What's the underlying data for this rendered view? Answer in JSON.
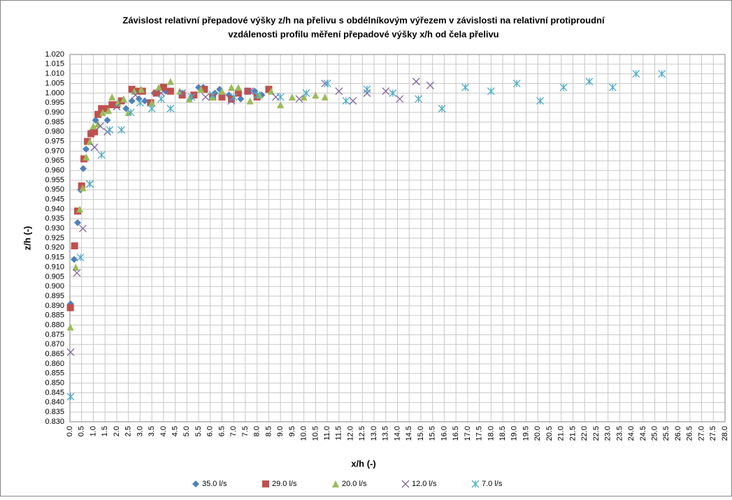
{
  "chart_data": {
    "type": "scatter",
    "title": [
      "Závislost relativní přepadové výšky z/h na přelivu s obdélníkovým výřezem v závislosti na relativní protiproudní",
      "vzdálenosti profilu měření přepadové výšky x/h od čela přelivu"
    ],
    "x_label": "x/h (-)",
    "y_label": "z/h (-)",
    "xlim": [
      0,
      28
    ],
    "ylim": [
      0.83,
      1.02
    ],
    "grid": true,
    "legend": "bottom",
    "xticks": [
      {
        "value": 0,
        "label": "0.0"
      },
      0.5,
      {
        "value": 1,
        "label": "1.0"
      },
      1.5,
      {
        "value": 2,
        "label": "2.0"
      },
      2.5,
      {
        "value": 3,
        "label": "3.0"
      },
      3.5,
      {
        "value": 4,
        "label": "4.0"
      },
      4.5,
      {
        "value": 5,
        "label": "5.0"
      },
      5.5,
      {
        "value": 6,
        "label": "6.0"
      },
      6.5,
      {
        "value": 7,
        "label": "7.0"
      },
      7.5,
      {
        "value": 8,
        "label": "8.0"
      },
      8.5,
      {
        "value": 9,
        "label": "9.0"
      },
      9.5,
      {
        "value": 10,
        "label": "10.0"
      },
      10.5,
      {
        "value": 11,
        "label": "11.0"
      },
      11.5,
      {
        "value": 12,
        "label": "12.0"
      },
      12.5,
      {
        "value": 13,
        "label": "13.0"
      },
      13.5,
      {
        "value": 14,
        "label": "14.0"
      },
      14.5,
      {
        "value": 15,
        "label": "15.0"
      },
      15.5,
      {
        "value": 16,
        "label": "16.0"
      },
      16.5,
      {
        "value": 17,
        "label": "17.0"
      },
      17.5,
      {
        "value": 18,
        "label": "18.0"
      },
      18.5,
      {
        "value": 19,
        "label": "19.0"
      },
      19.5,
      {
        "value": 20,
        "label": "20.0"
      },
      20.5,
      {
        "value": 21,
        "label": "21.0"
      },
      21.5,
      {
        "value": 22,
        "label": "22.0"
      },
      22.5,
      {
        "value": 23,
        "label": "23.0"
      },
      23.5,
      {
        "value": 24,
        "label": "24.0"
      },
      24.5,
      {
        "value": 25,
        "label": "25.0"
      },
      25.5,
      {
        "value": 26,
        "label": "26.0"
      },
      26.5,
      {
        "value": 27,
        "label": "27.0"
      },
      27.5,
      {
        "value": 28,
        "label": "28.0"
      }
    ],
    "yticks": [
      {
        "value": 0.83,
        "label": "0.830"
      },
      0.835,
      {
        "value": 0.84,
        "label": "0.840"
      },
      0.845,
      {
        "value": 0.85,
        "label": "0.850"
      },
      0.855,
      {
        "value": 0.86,
        "label": "0.860"
      },
      0.865,
      {
        "value": 0.87,
        "label": "0.870"
      },
      0.875,
      {
        "value": 0.88,
        "label": "0.880"
      },
      0.885,
      {
        "value": 0.89,
        "label": "0.890"
      },
      0.895,
      {
        "value": 0.9,
        "label": "0.900"
      },
      0.905,
      {
        "value": 0.91,
        "label": "0.910"
      },
      0.915,
      {
        "value": 0.92,
        "label": "0.920"
      },
      0.925,
      {
        "value": 0.93,
        "label": "0.930"
      },
      0.935,
      {
        "value": 0.94,
        "label": "0.940"
      },
      0.945,
      {
        "value": 0.95,
        "label": "0.950"
      },
      0.955,
      {
        "value": 0.96,
        "label": "0.960"
      },
      0.965,
      {
        "value": 0.97,
        "label": "0.970"
      },
      0.975,
      {
        "value": 0.98,
        "label": "0.980"
      },
      0.985,
      {
        "value": 0.99,
        "label": "0.990"
      },
      0.995,
      {
        "value": 1,
        "label": "1.000"
      },
      1.005,
      {
        "value": 1.01,
        "label": "1.010"
      },
      1.015,
      {
        "value": 1.02,
        "label": "1.020"
      }
    ],
    "series": [
      {
        "name": "35.0 l/s",
        "color": "#4f81bd",
        "marker": "diamond",
        "x": [
          0.03,
          0.18,
          0.33,
          0.45,
          0.57,
          0.69,
          0.9,
          1.1,
          1.35,
          1.6,
          2.4,
          2.65,
          2.95,
          3.2,
          3.6,
          4.1,
          4.8,
          5.2,
          5.5,
          5.7,
          6.2,
          6.4,
          6.8,
          7.3,
          7.6,
          7.9,
          8.2,
          8.5
        ],
        "values": [
          0.891,
          0.914,
          0.933,
          0.95,
          0.961,
          0.971,
          0.98,
          0.986,
          0.991,
          0.986,
          0.992,
          0.996,
          0.997,
          0.996,
          1.0,
          1.001,
          1.0,
          0.998,
          1.003,
          1.003,
          1.0,
          1.002,
          0.999,
          0.997,
          1.001,
          1.001,
          0.999,
          1.002
        ]
      },
      {
        "name": "29.0 l/s",
        "color": "#c0504d",
        "marker": "square",
        "x": [
          0.02,
          0.2,
          0.33,
          0.5,
          0.6,
          0.75,
          0.9,
          1.05,
          1.2,
          1.35,
          1.55,
          1.8,
          2.0,
          2.2,
          2.65,
          2.85,
          3.1,
          3.45,
          3.7,
          4.0,
          4.3,
          4.8,
          5.3,
          5.75,
          6.1,
          6.5,
          6.9,
          7.2,
          7.6,
          8.0,
          8.5
        ],
        "values": [
          0.889,
          0.921,
          0.939,
          0.952,
          0.966,
          0.975,
          0.979,
          0.98,
          0.989,
          0.992,
          0.992,
          0.994,
          0.994,
          0.996,
          1.002,
          1.001,
          1.001,
          0.995,
          1.0,
          1.003,
          1.001,
          0.999,
          0.999,
          1.002,
          0.998,
          0.998,
          0.997,
          1.0,
          1.001,
          0.998,
          1.002
        ]
      },
      {
        "name": "20.0 l/s",
        "color": "#9bbb59",
        "marker": "triangle",
        "x": [
          0.02,
          0.25,
          0.42,
          0.55,
          0.7,
          0.85,
          1.0,
          1.2,
          1.4,
          1.65,
          1.8,
          2.05,
          2.3,
          2.5,
          2.75,
          3.05,
          3.5,
          3.8,
          4.3,
          4.7,
          5.1,
          5.6,
          6.1,
          6.5,
          6.9,
          7.2,
          7.7,
          8.1,
          8.6,
          9.0,
          9.5,
          10.0,
          10.5,
          10.9
        ],
        "values": [
          0.879,
          0.91,
          0.94,
          0.951,
          0.967,
          0.975,
          0.983,
          0.984,
          0.99,
          0.991,
          0.998,
          0.995,
          0.997,
          0.99,
          1.001,
          1.002,
          0.995,
          1.003,
          1.006,
          1.001,
          0.997,
          1.002,
          0.998,
          1.001,
          1.003,
          1.003,
          0.996,
          0.999,
          1.001,
          0.994,
          0.998,
          0.998,
          0.999,
          0.998
        ]
      },
      {
        "name": "12.0 l/s",
        "color": "#8064a2",
        "marker": "x",
        "x": [
          0.03,
          0.3,
          0.55,
          0.85,
          1.05,
          1.3,
          1.6,
          2.0,
          2.8,
          3.9,
          4.8,
          5.8,
          6.9,
          7.7,
          8.8,
          9.8,
          10.9,
          11.5,
          12.1,
          12.7,
          13.5,
          14.1,
          14.8,
          15.4
        ],
        "values": [
          0.866,
          0.907,
          0.93,
          0.953,
          0.972,
          0.983,
          0.98,
          0.993,
          0.999,
          1.0,
          1.0,
          0.998,
          0.996,
          1.001,
          0.998,
          0.997,
          1.005,
          1.001,
          0.996,
          1.0,
          1.001,
          0.997,
          1.006,
          1.004
        ]
      },
      {
        "name": "7.0 l/s",
        "color": "#4bacc6",
        "marker": "star",
        "x": [
          0.03,
          0.45,
          0.85,
          1.35,
          1.7,
          2.2,
          2.6,
          3.0,
          3.5,
          3.9,
          4.3,
          5.2,
          6.1,
          7.0,
          8.0,
          9.0,
          10.1,
          11.0,
          11.8,
          12.7,
          13.8,
          14.9,
          15.9,
          16.9,
          18.0,
          19.1,
          20.1,
          21.1,
          22.2,
          23.2,
          24.2,
          25.3
        ],
        "values": [
          0.843,
          0.915,
          0.953,
          0.968,
          0.981,
          0.981,
          0.99,
          0.995,
          0.992,
          0.997,
          0.992,
          0.998,
          0.999,
          0.998,
          0.999,
          0.998,
          1.0,
          1.005,
          0.996,
          1.002,
          1.0,
          0.997,
          0.992,
          1.003,
          1.001,
          1.005,
          0.996,
          1.003,
          1.006,
          1.003,
          1.01,
          1.01
        ]
      }
    ]
  }
}
